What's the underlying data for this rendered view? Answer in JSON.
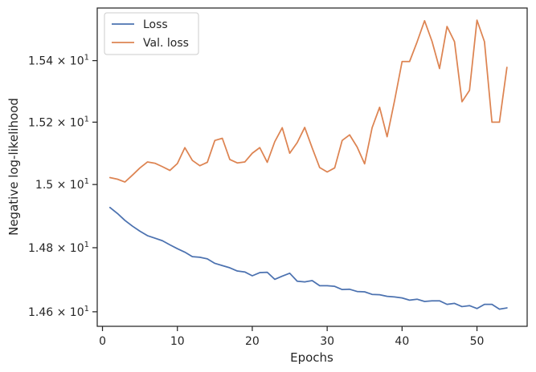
{
  "chart_data": {
    "type": "line",
    "title": "",
    "xlabel": "Epochs",
    "ylabel": "Negative log-likelihood",
    "xlim": [
      -0.7,
      56.7
    ],
    "ylim": [
      14.555,
      15.573
    ],
    "y_scale": "log",
    "x_ticks": [
      0,
      10,
      20,
      30,
      40,
      50
    ],
    "x_tick_labels": [
      "0",
      "10",
      "20",
      "30",
      "40",
      "50"
    ],
    "y_ticks": [
      14.6,
      14.8,
      15.0,
      15.2,
      15.4
    ],
    "y_tick_labels": [
      {
        "mantissa": "1.46",
        "base": "10",
        "exp": "1"
      },
      {
        "mantissa": "1.48",
        "base": "10",
        "exp": "1"
      },
      {
        "mantissa": "1.5",
        "base": "10",
        "exp": "1"
      },
      {
        "mantissa": "1.52",
        "base": "10",
        "exp": "1"
      },
      {
        "mantissa": "1.54",
        "base": "10",
        "exp": "1"
      }
    ],
    "grid": false,
    "legend_position": "top-left",
    "series": [
      {
        "name": "Loss",
        "color": "#4c72b0",
        "x": [
          1,
          2,
          3,
          4,
          5,
          6,
          7,
          8,
          9,
          10,
          11,
          12,
          13,
          14,
          15,
          16,
          17,
          18,
          19,
          20,
          21,
          22,
          23,
          24,
          25,
          26,
          27,
          28,
          29,
          30,
          31,
          32,
          33,
          34,
          35,
          36,
          37,
          38,
          39,
          40,
          41,
          42,
          43,
          44,
          45,
          46,
          47,
          48,
          49,
          50,
          51,
          52,
          53,
          54
        ],
        "values": [
          14.927,
          14.908,
          14.886,
          14.868,
          14.852,
          14.838,
          14.83,
          14.822,
          14.809,
          14.797,
          14.786,
          14.772,
          14.77,
          14.765,
          14.751,
          14.744,
          14.737,
          14.727,
          14.724,
          14.712,
          14.722,
          14.723,
          14.701,
          14.711,
          14.72,
          14.695,
          14.693,
          14.697,
          14.681,
          14.681,
          14.679,
          14.669,
          14.67,
          14.663,
          14.662,
          14.654,
          14.653,
          14.648,
          14.646,
          14.643,
          14.636,
          14.639,
          14.632,
          14.634,
          14.634,
          14.623,
          14.626,
          14.616,
          14.619,
          14.61,
          14.623,
          14.623,
          14.608,
          14.612
        ]
      },
      {
        "name": "Val. loss",
        "color": "#dd8452",
        "x": [
          1,
          2,
          3,
          4,
          5,
          6,
          7,
          8,
          9,
          10,
          11,
          12,
          13,
          14,
          15,
          16,
          17,
          18,
          19,
          20,
          21,
          22,
          23,
          24,
          25,
          26,
          27,
          28,
          29,
          30,
          31,
          32,
          33,
          34,
          35,
          36,
          37,
          38,
          39,
          40,
          41,
          42,
          43,
          44,
          45,
          46,
          47,
          48,
          49,
          50,
          51,
          52,
          53,
          54
        ],
        "values": [
          15.022,
          15.017,
          15.008,
          15.03,
          15.053,
          15.072,
          15.068,
          15.057,
          15.045,
          15.067,
          15.118,
          15.077,
          15.06,
          15.071,
          15.141,
          15.148,
          15.08,
          15.069,
          15.072,
          15.1,
          15.118,
          15.071,
          15.137,
          15.182,
          15.1,
          15.134,
          15.183,
          15.117,
          15.054,
          15.04,
          15.053,
          15.141,
          15.159,
          15.12,
          15.066,
          15.182,
          15.248,
          15.153,
          15.27,
          15.397,
          15.397,
          15.461,
          15.531,
          15.463,
          15.374,
          15.512,
          15.462,
          15.266,
          15.303,
          15.533,
          15.462,
          15.2,
          15.2,
          15.378
        ]
      }
    ]
  }
}
